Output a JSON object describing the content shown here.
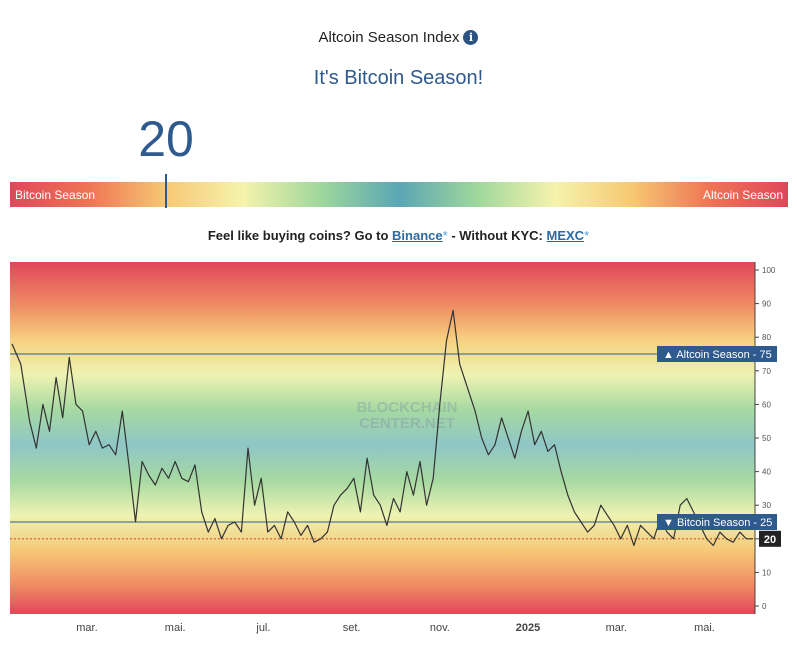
{
  "header": {
    "title": "Altcoin Season Index",
    "info_icon": "info-icon",
    "season_text": "It's Bitcoin Season!",
    "current_value": "20"
  },
  "gauge": {
    "left_label": "Bitcoin Season",
    "right_label": "Altcoin Season",
    "value": 20
  },
  "promo": {
    "prefix": "Feel like buying coins? Go to",
    "link1": "Binance",
    "star": "*",
    "middle": "- Without KYC:",
    "link2": "MEXC"
  },
  "colors": {
    "accent": "#2f5a8e",
    "line": "#333333",
    "tag": "#2f5a8e"
  },
  "chart_data": {
    "type": "line",
    "watermark": [
      "BLOCKCHAIN",
      "CENTER.NET"
    ],
    "ylim": [
      0,
      100
    ],
    "yticks": [
      0,
      10,
      20,
      30,
      40,
      50,
      60,
      70,
      80,
      90,
      100
    ],
    "x_ticks": [
      {
        "label": "mar.",
        "x": 1.7
      },
      {
        "label": "mai.",
        "x": 3.7
      },
      {
        "label": "jul.",
        "x": 5.7
      },
      {
        "label": "set.",
        "x": 7.7
      },
      {
        "label": "nov.",
        "x": 9.7
      },
      {
        "label": "2025",
        "x": 11.7
      },
      {
        "label": "mar.",
        "x": 13.7
      },
      {
        "label": "mai.",
        "x": 15.7
      }
    ],
    "reference_lines": [
      {
        "label": "▲ Altcoin Season",
        "value": 75
      },
      {
        "label": "▼ Bitcoin Season",
        "value": 25
      }
    ],
    "current": {
      "label": "20",
      "value": 20
    },
    "series": [
      {
        "x": [
          0,
          0.2,
          0.4,
          0.55,
          0.7,
          0.85,
          1.0,
          1.15,
          1.3,
          1.45,
          1.6,
          1.75,
          1.9,
          2.05,
          2.2,
          2.35,
          2.5,
          2.65,
          2.8,
          2.95,
          3.1,
          3.25,
          3.4,
          3.55,
          3.7,
          3.85,
          4.0,
          4.15,
          4.3,
          4.45,
          4.6,
          4.75,
          4.9,
          5.05,
          5.2,
          5.35,
          5.5,
          5.65,
          5.8,
          5.95,
          6.1,
          6.25,
          6.4,
          6.55,
          6.7,
          6.85,
          7.0,
          7.15,
          7.3,
          7.45,
          7.6,
          7.75,
          7.9,
          8.05,
          8.2,
          8.35,
          8.5,
          8.65,
          8.8,
          8.95,
          9.1,
          9.25,
          9.4,
          9.55,
          9.7,
          9.85,
          10.0,
          10.15,
          10.3,
          10.4,
          10.5,
          10.65,
          10.8,
          10.95,
          11.1,
          11.25,
          11.4,
          11.55,
          11.7,
          11.85,
          12.0,
          12.15,
          12.3,
          12.45,
          12.6,
          12.75,
          12.9,
          13.05,
          13.2,
          13.35,
          13.5,
          13.65,
          13.8,
          13.95,
          14.1,
          14.25,
          14.4,
          14.55,
          14.7,
          14.85,
          15.0,
          15.15,
          15.3,
          15.45,
          15.6,
          15.75,
          15.9,
          16.05,
          16.2,
          16.35,
          16.5,
          16.65,
          16.8
        ],
        "y": [
          78,
          72,
          55,
          47,
          60,
          52,
          68,
          56,
          74,
          60,
          58,
          48,
          52,
          47,
          48,
          45,
          58,
          42,
          25,
          43,
          39,
          36,
          41,
          38,
          43,
          38,
          37,
          42,
          28,
          22,
          26,
          20,
          24,
          25,
          22,
          47,
          30,
          38,
          22,
          24,
          20,
          28,
          25,
          21,
          24,
          19,
          20,
          22,
          30,
          33,
          35,
          38,
          28,
          44,
          33,
          30,
          24,
          32,
          28,
          40,
          33,
          43,
          30,
          38,
          60,
          79,
          88,
          72,
          66,
          62,
          58,
          50,
          45,
          48,
          56,
          50,
          44,
          52,
          58,
          48,
          52,
          46,
          48,
          40,
          33,
          28,
          25,
          22,
          24,
          30,
          27,
          24,
          20,
          24,
          18,
          24,
          22,
          20,
          26,
          22,
          20,
          30,
          32,
          28,
          24,
          20,
          18,
          22,
          20,
          19,
          22,
          20,
          20
        ]
      }
    ]
  }
}
